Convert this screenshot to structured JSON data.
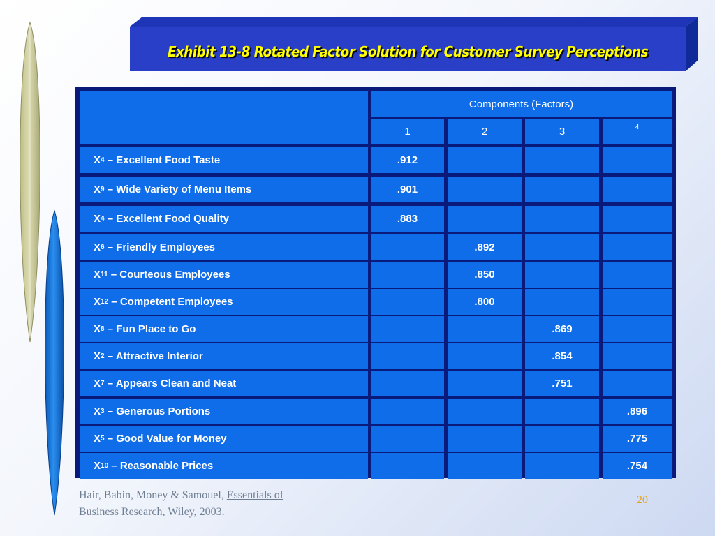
{
  "title": "Exhibit 13-8   Rotated Factor Solution for Customer Survey Perceptions",
  "table": {
    "group_header": "Components (Factors)",
    "component_headers": [
      "1",
      "2",
      "3",
      "4"
    ],
    "rows": [
      {
        "prefix": "X",
        "sub": "4",
        "label": " – Excellent Food Taste",
        "values": [
          ".912",
          "",
          "",
          ""
        ]
      },
      {
        "prefix": "X",
        "sub": "9",
        "label": " – Wide Variety of Menu Items",
        "values": [
          ".901",
          "",
          "",
          ""
        ]
      },
      {
        "prefix": "X",
        "sub": "4",
        "label": " – Excellent Food Quality",
        "values": [
          ".883",
          "",
          "",
          ""
        ]
      },
      {
        "prefix": "X",
        "sub": "6",
        "label": " – Friendly Employees",
        "values": [
          "",
          ".892",
          "",
          ""
        ]
      },
      {
        "prefix": "X",
        "sub": "11",
        "label": " – Courteous Employees",
        "values": [
          "",
          ".850",
          "",
          ""
        ]
      },
      {
        "prefix": "X",
        "sub": "12",
        "label": " – Competent Employees",
        "values": [
          "",
          ".800",
          "",
          ""
        ]
      },
      {
        "prefix": "X",
        "sub": "8",
        "label": " – Fun Place to Go",
        "values": [
          "",
          "",
          ".869",
          ""
        ]
      },
      {
        "prefix": "X",
        "sub": "2",
        "label": " – Attractive Interior",
        "values": [
          "",
          "",
          ".854",
          ""
        ]
      },
      {
        "prefix": "X",
        "sub": "7",
        "label": " – Appears Clean and Neat",
        "values": [
          "",
          "",
          ".751",
          ""
        ]
      },
      {
        "prefix": "X",
        "sub": "3",
        "label": " – Generous Portions",
        "values": [
          "",
          "",
          "",
          ".896"
        ]
      },
      {
        "prefix": "X",
        "sub": "5",
        "label": " – Good Value for Money",
        "values": [
          "",
          "",
          "",
          ".775"
        ]
      },
      {
        "prefix": "X",
        "sub": "10",
        "label": " – Reasonable Prices",
        "values": [
          "",
          "",
          "",
          ".754"
        ]
      }
    ]
  },
  "citation": {
    "authors": "Hair, Babin, Money & Samouel, ",
    "book_part1": "Essentials of",
    "book_part2": "Business Research",
    "rest": ", Wiley, 2003."
  },
  "page_number": "20",
  "colors": {
    "title_text": "#ffff00",
    "banner": "#2a3fc8",
    "cell": "#0f6dea",
    "grid": "#0a1a7a",
    "page_number": "#e6a323"
  }
}
